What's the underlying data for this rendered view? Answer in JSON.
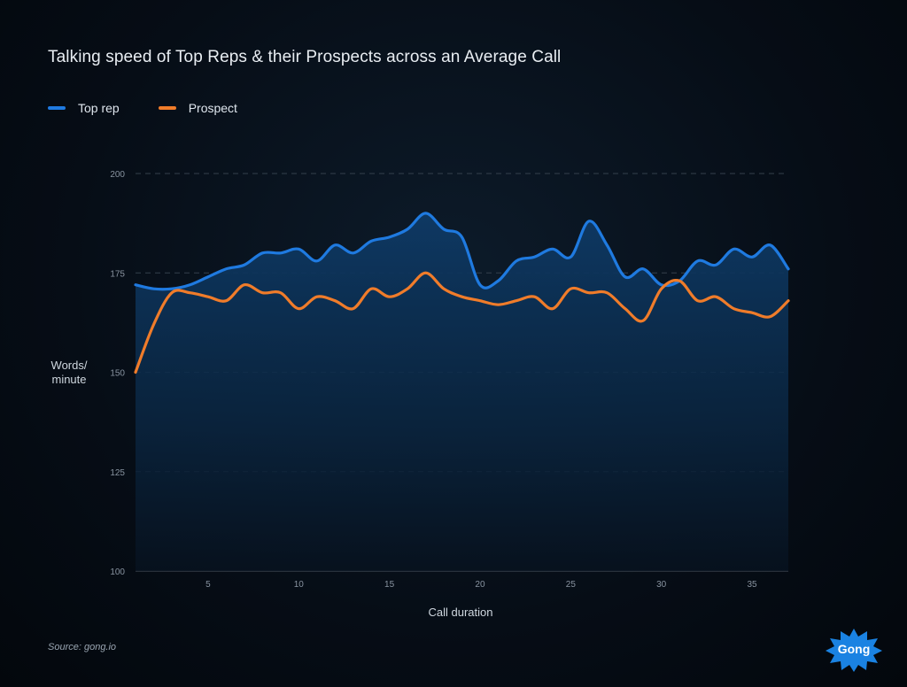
{
  "chart_data": {
    "type": "line",
    "title": "Talking speed of Top Reps & their Prospects across an Average Call",
    "xlabel": "Call duration",
    "ylabel": [
      "Words/",
      "minute"
    ],
    "xlim": [
      1,
      37
    ],
    "ylim": [
      100,
      200
    ],
    "xticks": [
      5,
      10,
      15,
      20,
      25,
      30,
      35
    ],
    "yticks": [
      100,
      125,
      150,
      175,
      200
    ],
    "grid": true,
    "legend_position": "top-left",
    "x": [
      1,
      2,
      3,
      4,
      5,
      6,
      7,
      8,
      9,
      10,
      11,
      12,
      13,
      14,
      15,
      16,
      17,
      18,
      19,
      20,
      21,
      22,
      23,
      24,
      25,
      26,
      27,
      28,
      29,
      30,
      31,
      32,
      33,
      34,
      35,
      36,
      37
    ],
    "series": [
      {
        "name": "Top rep",
        "color": "#1f7ae0",
        "values": [
          172,
          171,
          171,
          172,
          174,
          176,
          177,
          180,
          180,
          181,
          178,
          182,
          180,
          183,
          184,
          186,
          190,
          186,
          184,
          172,
          173,
          178,
          179,
          181,
          179,
          188,
          182,
          174,
          176,
          172,
          173,
          178,
          177,
          181,
          179,
          182,
          176
        ]
      },
      {
        "name": "Prospect",
        "color": "#f07c2a",
        "values": [
          150,
          162,
          170,
          170,
          169,
          168,
          172,
          170,
          170,
          166,
          169,
          168,
          166,
          171,
          169,
          171,
          175,
          171,
          169,
          168,
          167,
          168,
          169,
          166,
          171,
          170,
          170,
          166,
          163,
          171,
          173,
          168,
          169,
          166,
          165,
          164,
          168
        ]
      }
    ]
  },
  "source": "Source: gong.io",
  "logo": {
    "text": "Gong",
    "color": "#1a82e2"
  }
}
